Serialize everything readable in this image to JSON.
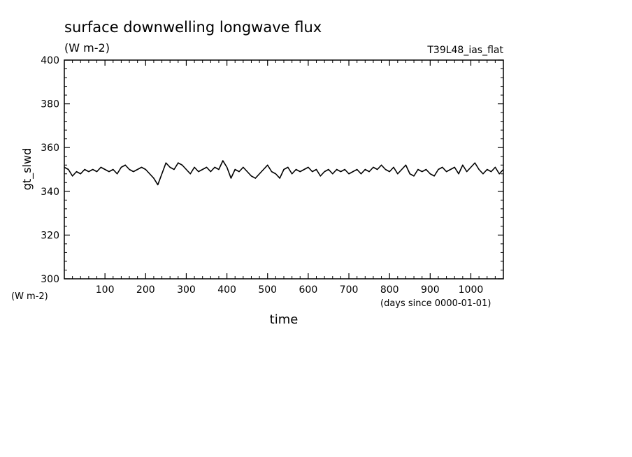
{
  "chart_data": {
    "type": "line",
    "title": "surface downwelling longwave flux",
    "subtitle": "(W m-2)",
    "experiment": "T39L48_ias_flat",
    "xlabel": "time",
    "x_units": "(days since 0000-01-01)",
    "ylabel": "gt_slwd",
    "y_units": "(W m-2)",
    "xlim": [
      0,
      1080
    ],
    "ylim": [
      300,
      400
    ],
    "x_ticks": [
      100,
      200,
      300,
      400,
      500,
      600,
      700,
      800,
      900,
      1000
    ],
    "x_tick_labels": [
      "100",
      "200",
      "300",
      "400",
      "500",
      "600",
      "700",
      "800",
      "900",
      "1000"
    ],
    "y_ticks": [
      300,
      320,
      340,
      360,
      380,
      400
    ],
    "y_tick_labels": [
      "300",
      "320",
      "340",
      "360",
      "380",
      "400"
    ],
    "grid": false,
    "line_color": "#000000",
    "series": [
      {
        "x": [
          0,
          10,
          20,
          30,
          40,
          50,
          60,
          70,
          80,
          90,
          100,
          110,
          120,
          130,
          140,
          150,
          160,
          170,
          180,
          190,
          200,
          210,
          220,
          230,
          240,
          250,
          260,
          270,
          280,
          290,
          300,
          310,
          320,
          330,
          340,
          350,
          360,
          370,
          380,
          390,
          400,
          410,
          420,
          430,
          440,
          450,
          460,
          470,
          480,
          490,
          500,
          510,
          520,
          530,
          540,
          550,
          560,
          570,
          580,
          590,
          600,
          610,
          620,
          630,
          640,
          650,
          660,
          670,
          680,
          690,
          700,
          710,
          720,
          730,
          740,
          750,
          760,
          770,
          780,
          790,
          800,
          810,
          820,
          830,
          840,
          850,
          860,
          870,
          880,
          890,
          900,
          910,
          920,
          930,
          940,
          950,
          960,
          970,
          980,
          990,
          1000,
          1010,
          1020,
          1030,
          1040,
          1050,
          1060,
          1070,
          1080
        ],
        "values": [
          351,
          350,
          347,
          349,
          348,
          350,
          349,
          350,
          349,
          351,
          350,
          349,
          350,
          348,
          351,
          352,
          350,
          349,
          350,
          351,
          350,
          348,
          346,
          343,
          348,
          353,
          351,
          350,
          353,
          352,
          350,
          348,
          351,
          349,
          350,
          351,
          349,
          351,
          350,
          354,
          351,
          346,
          350,
          349,
          351,
          349,
          347,
          346,
          348,
          350,
          352,
          349,
          348,
          346,
          350,
          351,
          348,
          350,
          349,
          350,
          351,
          349,
          350,
          347,
          349,
          350,
          348,
          350,
          349,
          350,
          348,
          349,
          350,
          348,
          350,
          349,
          351,
          350,
          352,
          350,
          349,
          351,
          348,
          350,
          352,
          348,
          347,
          350,
          349,
          350,
          348,
          347,
          350,
          351,
          349,
          350,
          351,
          348,
          352,
          349,
          351,
          353,
          350,
          348,
          350,
          349,
          351,
          348,
          350
        ]
      }
    ]
  }
}
